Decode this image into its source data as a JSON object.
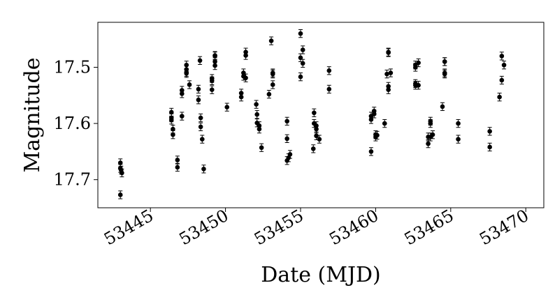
{
  "chart_data": {
    "type": "scatter",
    "x_label": "Date (MJD)",
    "y_label": "Magnitude",
    "xlim": [
      53441.5,
      53471.2
    ],
    "ylim": [
      17.42,
      17.75
    ],
    "y_inverted": true,
    "xticks": [
      53445,
      53450,
      53455,
      53460,
      53465,
      53470
    ],
    "yticks": [
      17.5,
      17.6,
      17.7
    ],
    "color": "#000000",
    "yerr": 0.007,
    "x": [
      53443.0,
      53443.0,
      53443.05,
      53443.1,
      53443.0,
      53446.4,
      53446.4,
      53446.4,
      53446.5,
      53446.5,
      53446.8,
      53446.8,
      53447.1,
      53447.1,
      53447.1,
      53447.4,
      53447.4,
      53447.4,
      53447.4,
      53447.6,
      53448.2,
      53448.2,
      53448.3,
      53448.35,
      53448.35,
      53448.45,
      53448.55,
      53449.1,
      53449.1,
      53449.1,
      53449.3,
      53449.3,
      53449.3,
      53449.3,
      53450.1,
      53451.05,
      53451.05,
      53451.2,
      53451.2,
      53451.35,
      53451.35,
      53451.35,
      53452.05,
      53452.1,
      53452.1,
      53452.25,
      53452.25,
      53452.4,
      53452.9,
      53453.05,
      53453.15,
      53453.15,
      53453.15,
      53454.1,
      53454.1,
      53454.1,
      53454.2,
      53454.3,
      53455.0,
      53455.0,
      53455.0,
      53455.15,
      53455.15,
      53455.9,
      53455.9,
      53455.85,
      53456.05,
      53456.05,
      53456.05,
      53456.25,
      53456.9,
      53456.9,
      53459.7,
      53459.7,
      53459.7,
      53459.9,
      53459.9,
      53460.0,
      53460.0,
      53460.1,
      53460.6,
      53460.75,
      53460.85,
      53460.85,
      53460.85,
      53460.85,
      53461.0,
      53462.65,
      53462.65,
      53462.65,
      53462.65,
      53462.85,
      53462.85,
      53463.5,
      53463.5,
      53463.65,
      53463.65,
      53463.65,
      53463.8,
      53464.45,
      53464.6,
      53464.6,
      53464.6,
      53464.6,
      53465.5,
      53465.5,
      53467.6,
      53467.6,
      53468.25,
      53468.4,
      53468.4,
      53468.55
    ],
    "values": [
      17.68,
      17.67,
      17.683,
      17.688,
      17.727,
      17.58,
      17.594,
      17.59,
      17.61,
      17.62,
      17.665,
      17.678,
      17.587,
      17.547,
      17.541,
      17.511,
      17.504,
      17.509,
      17.496,
      17.531,
      17.558,
      17.539,
      17.488,
      17.59,
      17.606,
      17.628,
      17.681,
      17.54,
      17.52,
      17.524,
      17.497,
      17.49,
      17.479,
      17.48,
      17.571,
      17.546,
      17.553,
      17.51,
      17.516,
      17.473,
      17.479,
      17.519,
      17.566,
      17.584,
      17.599,
      17.604,
      17.61,
      17.643,
      17.548,
      17.453,
      17.51,
      17.531,
      17.512,
      17.596,
      17.627,
      17.666,
      17.661,
      17.655,
      17.44,
      17.483,
      17.517,
      17.469,
      17.493,
      17.581,
      17.6,
      17.645,
      17.604,
      17.61,
      17.622,
      17.628,
      17.506,
      17.539,
      17.65,
      17.593,
      17.587,
      17.578,
      17.583,
      17.62,
      17.624,
      17.621,
      17.6,
      17.512,
      17.474,
      17.473,
      17.54,
      17.534,
      17.51,
      17.529,
      17.532,
      17.5,
      17.496,
      17.492,
      17.532,
      17.636,
      17.624,
      17.596,
      17.6,
      17.624,
      17.62,
      17.57,
      17.51,
      17.49,
      17.49,
      17.512,
      17.6,
      17.628,
      17.614,
      17.642,
      17.553,
      17.48,
      17.523,
      17.496
    ]
  }
}
